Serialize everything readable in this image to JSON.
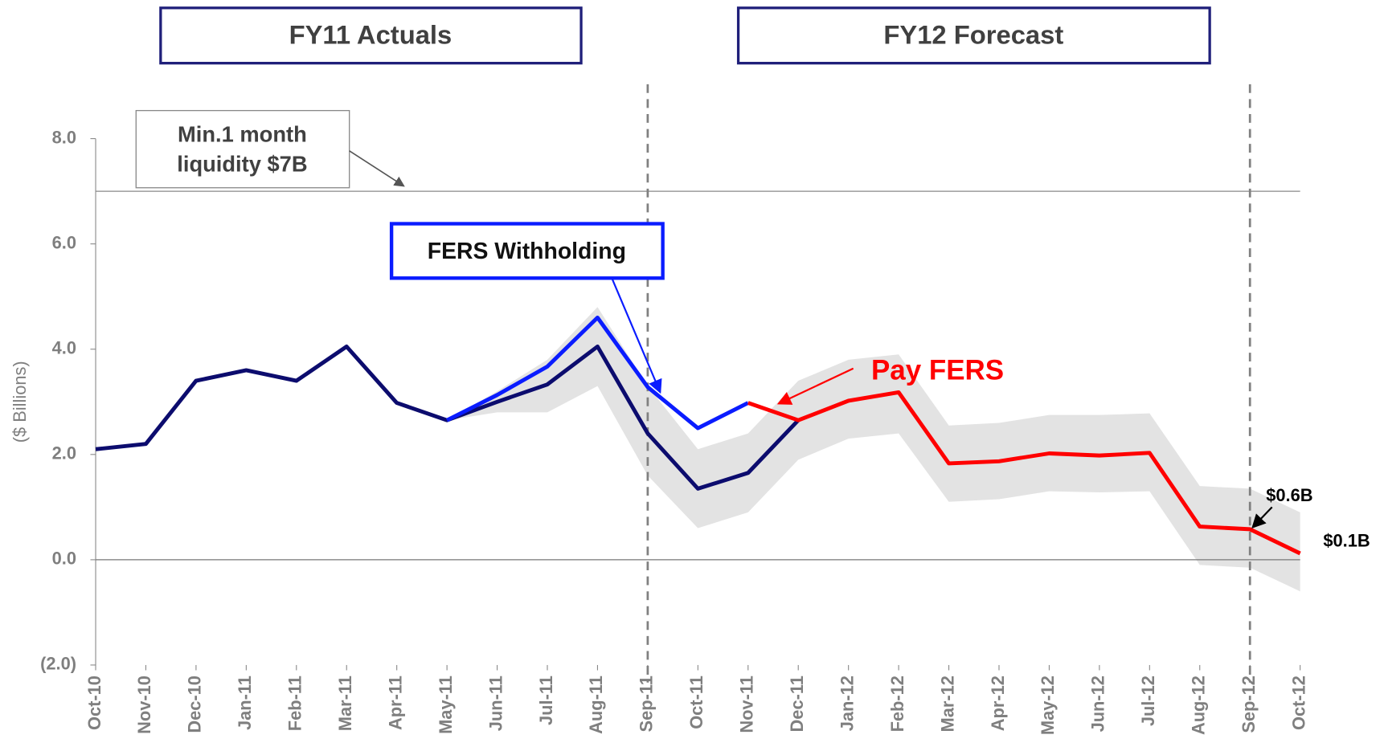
{
  "chart_data": {
    "type": "line",
    "y_label": "($ Billions)",
    "categories": [
      "Oct-10",
      "Nov-10",
      "Dec-10",
      "Jan-11",
      "Feb-11",
      "Mar-11",
      "Apr-11",
      "May-11",
      "Jun-11",
      "Jul-11",
      "Aug-11",
      "Sep-11",
      "Oct-11",
      "Nov-11",
      "Dec-11",
      "Jan-12",
      "Feb-12",
      "Mar-12",
      "Apr-12",
      "May-12",
      "Jun-12",
      "Jul-12",
      "Aug-12",
      "Sep-12",
      "Oct-12"
    ],
    "ylim": [
      -2,
      8
    ],
    "yticks": [
      {
        "value": -2,
        "label": "(2.0)"
      },
      {
        "value": 0,
        "label": "0.0"
      },
      {
        "value": 2,
        "label": "2.0"
      },
      {
        "value": 4,
        "label": "4.0"
      },
      {
        "value": 6,
        "label": "6.0"
      },
      {
        "value": 8,
        "label": "8.0"
      }
    ],
    "band": {
      "color": "#e3e3e3",
      "upper": [
        null,
        null,
        null,
        null,
        null,
        null,
        null,
        2.65,
        3.2,
        3.8,
        4.8,
        3.3,
        2.1,
        2.4,
        3.4,
        3.8,
        3.9,
        2.55,
        2.6,
        2.75,
        2.75,
        2.78,
        1.4,
        1.35,
        0.9
      ],
      "lower": [
        null,
        null,
        null,
        null,
        null,
        null,
        null,
        2.65,
        2.8,
        2.8,
        3.3,
        1.6,
        0.6,
        0.9,
        1.9,
        2.3,
        2.4,
        1.1,
        1.15,
        1.3,
        1.28,
        1.3,
        -0.1,
        -0.15,
        -0.6
      ]
    },
    "series": [
      {
        "color": "#0c0c6e",
        "values": [
          2.1,
          2.2,
          3.4,
          3.6,
          3.4,
          4.05,
          2.98,
          2.65,
          3.0,
          3.33,
          4.05,
          2.4,
          1.35,
          1.65,
          2.65,
          null,
          null,
          null,
          null,
          null,
          null,
          null,
          null,
          null,
          null
        ]
      },
      {
        "color": "#0a1cff",
        "values": [
          null,
          null,
          null,
          null,
          null,
          null,
          null,
          2.65,
          3.13,
          3.67,
          4.6,
          3.28,
          2.5,
          2.98,
          null,
          null,
          null,
          null,
          null,
          null,
          null,
          null,
          null,
          null,
          null
        ]
      },
      {
        "color": "#ff0000",
        "values": [
          null,
          null,
          null,
          null,
          null,
          null,
          null,
          null,
          null,
          null,
          null,
          null,
          null,
          2.98,
          2.65,
          3.02,
          3.18,
          1.83,
          1.87,
          2.02,
          1.98,
          2.03,
          0.63,
          0.58,
          0.12
        ],
        "value_labels": [
          null,
          null,
          null,
          null,
          null,
          null,
          null,
          null,
          null,
          null,
          null,
          null,
          null,
          null,
          null,
          null,
          null,
          null,
          null,
          null,
          null,
          null,
          null,
          "$0.6B",
          "$0.1B"
        ]
      }
    ],
    "reference_line": 7,
    "period_lines": [
      "Sep-11",
      "Sep-12"
    ],
    "annotations": {
      "fy11": "FY11 Actuals",
      "fy12": "FY12 Forecast",
      "min_line1": "Min.1 month",
      "min_line2": "liquidity $7B",
      "fers": "FERS Withholding",
      "pay": "Pay FERS"
    }
  }
}
